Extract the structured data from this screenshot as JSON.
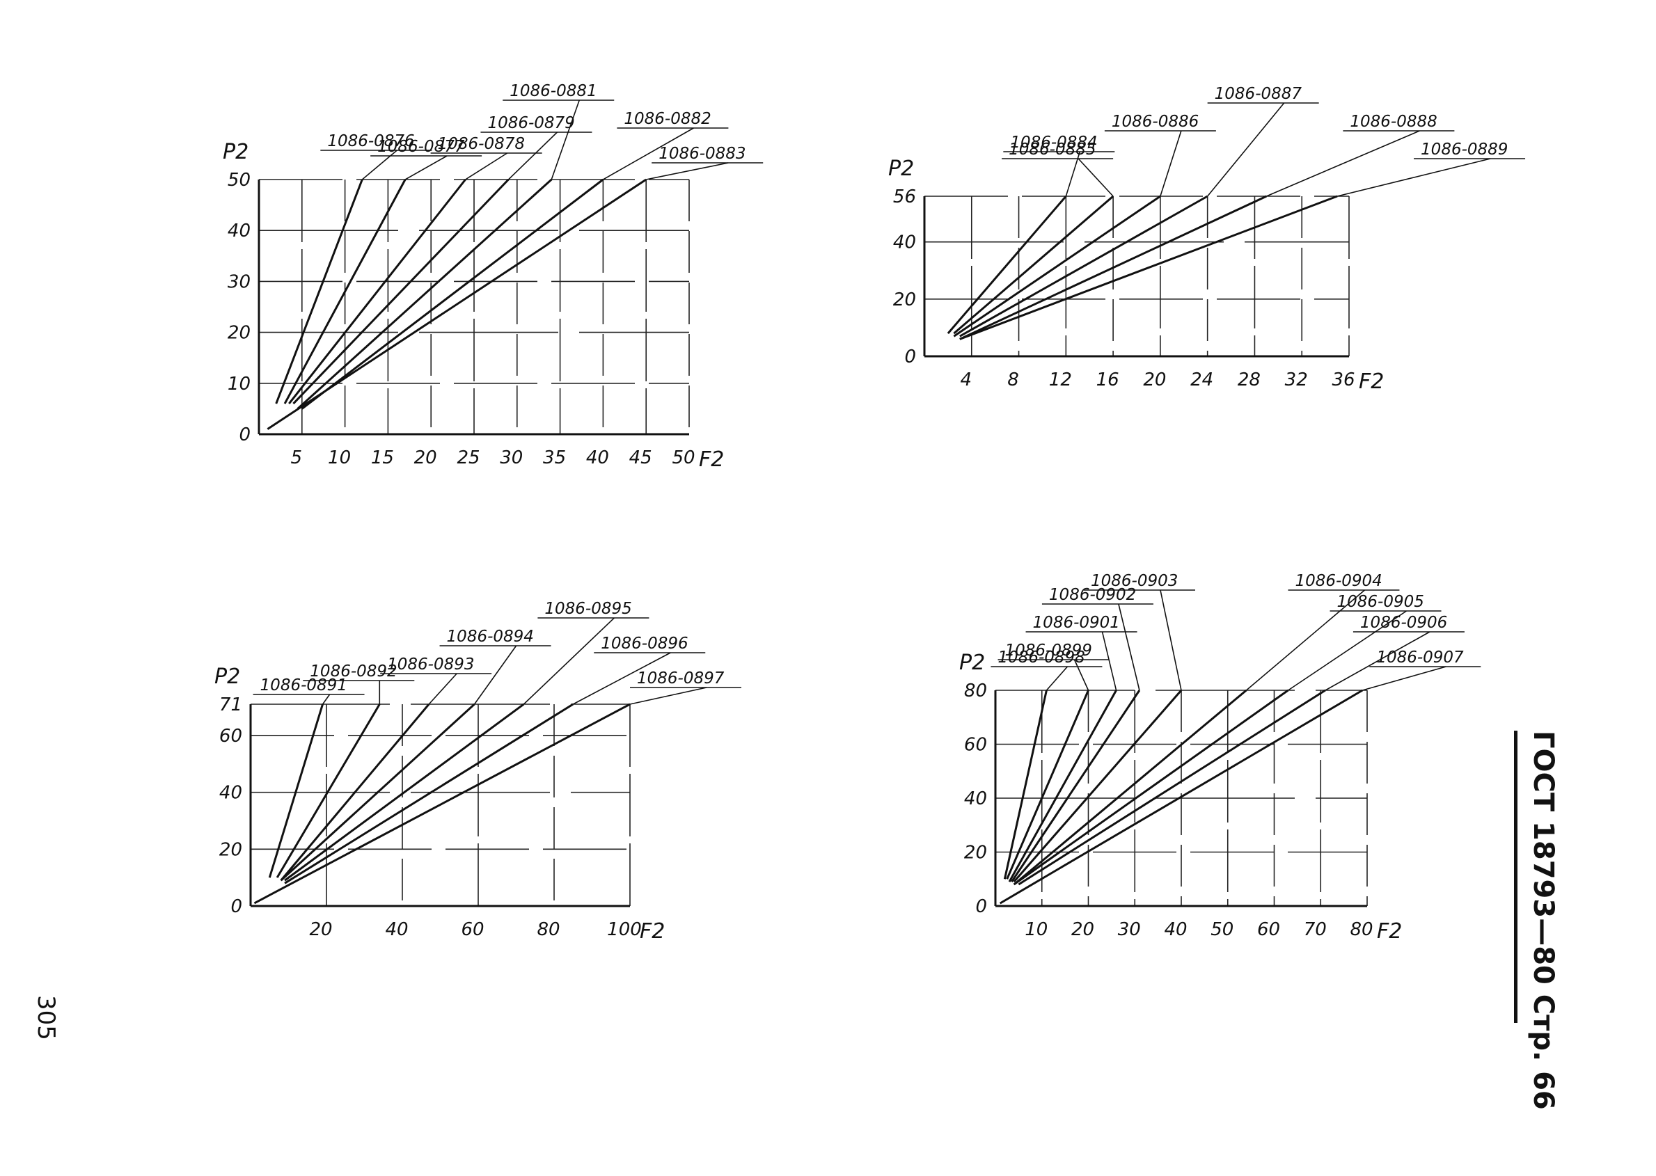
{
  "page": {
    "header": "ГОСТ 18793—80 Стр. 66",
    "page_number": "305"
  },
  "chart_data": [
    {
      "type": "line",
      "xlabel": "F2",
      "ylabel": "P2",
      "xlim": [
        0,
        50
      ],
      "ylim": [
        0,
        50
      ],
      "xticks": [
        "5",
        "10",
        "15",
        "20",
        "25",
        "30",
        "35",
        "40",
        "45",
        "50"
      ],
      "yticks": [
        "0",
        "10",
        "20",
        "30",
        "40",
        "50"
      ],
      "series": [
        {
          "name": "1086-0876",
          "x": [
            2,
            12
          ],
          "y": [
            6,
            50
          ]
        },
        {
          "name": "1086-0877",
          "x": [
            3,
            17
          ],
          "y": [
            6,
            50
          ]
        },
        {
          "name": "1086-0878",
          "x": [
            3.5,
            24
          ],
          "y": [
            6,
            50
          ]
        },
        {
          "name": "1086-0879",
          "x": [
            4,
            29
          ],
          "y": [
            6,
            50
          ]
        },
        {
          "name": "1086-0881",
          "x": [
            4.5,
            34
          ],
          "y": [
            5,
            50
          ]
        },
        {
          "name": "1086-0882",
          "x": [
            5,
            40
          ],
          "y": [
            5,
            50
          ]
        },
        {
          "name": "1086-0883",
          "x": [
            1,
            45
          ],
          "y": [
            1,
            50
          ]
        }
      ]
    },
    {
      "type": "line",
      "xlabel": "F2",
      "ylabel": "P2",
      "xlim": [
        0,
        36
      ],
      "ylim": [
        0,
        56
      ],
      "xticks": [
        "4",
        "8",
        "12",
        "16",
        "20",
        "24",
        "28",
        "32",
        "36"
      ],
      "yticks": [
        "0",
        "20",
        "40",
        "56"
      ],
      "series": [
        {
          "name": "1086-0884",
          "x": [
            2,
            12
          ],
          "y": [
            8,
            56
          ]
        },
        {
          "name": "1086-0885",
          "x": [
            2.5,
            16
          ],
          "y": [
            8,
            56
          ]
        },
        {
          "name": "1086-0886",
          "x": [
            2.5,
            20
          ],
          "y": [
            7,
            56
          ]
        },
        {
          "name": "1086-0887",
          "x": [
            3,
            24
          ],
          "y": [
            7,
            56
          ]
        },
        {
          "name": "1086-0888",
          "x": [
            3,
            29
          ],
          "y": [
            6,
            56
          ]
        },
        {
          "name": "1086-0889",
          "x": [
            3,
            35
          ],
          "y": [
            6,
            56
          ]
        }
      ]
    },
    {
      "type": "line",
      "xlabel": "F2",
      "ylabel": "P2",
      "xlim": [
        0,
        100
      ],
      "ylim": [
        0,
        71
      ],
      "xticks": [
        "20",
        "40",
        "60",
        "80",
        "100"
      ],
      "yticks": [
        "0",
        "20",
        "40",
        "60",
        "71"
      ],
      "series": [
        {
          "name": "1086-0891",
          "x": [
            5,
            19
          ],
          "y": [
            10,
            71
          ]
        },
        {
          "name": "1086-0892",
          "x": [
            7,
            34
          ],
          "y": [
            10,
            71
          ]
        },
        {
          "name": "1086-0893",
          "x": [
            8,
            47
          ],
          "y": [
            9,
            71
          ]
        },
        {
          "name": "1086-0894",
          "x": [
            8,
            59
          ],
          "y": [
            9,
            71
          ]
        },
        {
          "name": "1086-0895",
          "x": [
            9,
            72
          ],
          "y": [
            9,
            71
          ]
        },
        {
          "name": "1086-0896",
          "x": [
            9,
            85
          ],
          "y": [
            8,
            71
          ]
        },
        {
          "name": "1086-0897",
          "x": [
            1,
            100
          ],
          "y": [
            1,
            71
          ]
        }
      ]
    },
    {
      "type": "line",
      "xlabel": "F2",
      "ylabel": "P2",
      "xlim": [
        0,
        80
      ],
      "ylim": [
        0,
        80
      ],
      "xticks": [
        "10",
        "20",
        "30",
        "40",
        "50",
        "60",
        "70",
        "80"
      ],
      "yticks": [
        "0",
        "20",
        "40",
        "60",
        "80"
      ],
      "series": [
        {
          "name": "1086-0898",
          "x": [
            2,
            11
          ],
          "y": [
            10,
            80
          ]
        },
        {
          "name": "1086-0899",
          "x": [
            2.5,
            20
          ],
          "y": [
            10,
            80
          ]
        },
        {
          "name": "1086-0901",
          "x": [
            3,
            26
          ],
          "y": [
            9,
            80
          ]
        },
        {
          "name": "1086-0902",
          "x": [
            3.5,
            31
          ],
          "y": [
            9,
            80
          ]
        },
        {
          "name": "1086-0903",
          "x": [
            4,
            40
          ],
          "y": [
            9,
            80
          ]
        },
        {
          "name": "1086-0904",
          "x": [
            4,
            54
          ],
          "y": [
            8,
            80
          ]
        },
        {
          "name": "1086-0905",
          "x": [
            4,
            63
          ],
          "y": [
            8,
            80
          ]
        },
        {
          "name": "1086-0906",
          "x": [
            5,
            71
          ],
          "y": [
            8,
            80
          ]
        },
        {
          "name": "1086-0907",
          "x": [
            1,
            79
          ],
          "y": [
            1,
            80
          ]
        }
      ]
    }
  ]
}
